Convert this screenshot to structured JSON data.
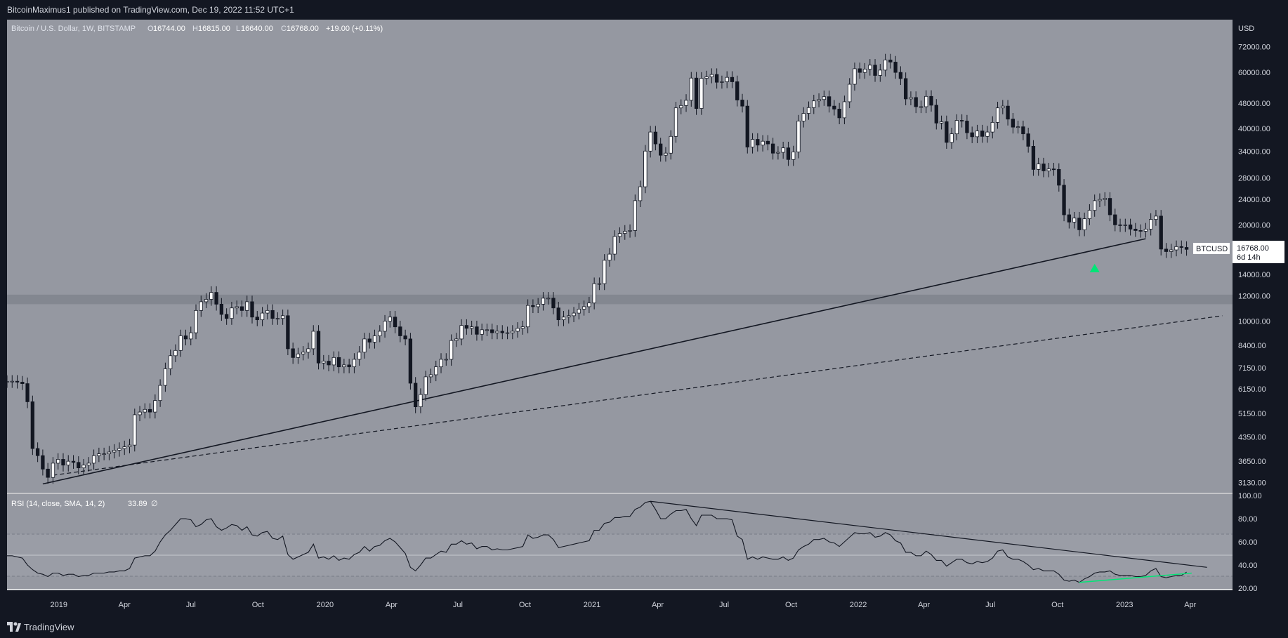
{
  "header": {
    "publisher": "BitcoinMaximus1 published on TradingView.com, Dec 19, 2022 11:52 UTC+1"
  },
  "legend": {
    "title": "Bitcoin / U.S. Dollar, 1W, BITSTAMP",
    "o_label": "O",
    "o_value": "16744.00",
    "h_label": "H",
    "h_value": "16815.00",
    "l_label": "L",
    "l_value": "16640.00",
    "c_label": "C",
    "c_value": "16768.00",
    "change": "+19.00 (+0.11%)"
  },
  "price_axis": {
    "currency": "USD",
    "ticks": [
      "72000.00",
      "60000.00",
      "48000.00",
      "40000.00",
      "34000.00",
      "28000.00",
      "24000.00",
      "20000.00",
      "14000.00",
      "12000.00",
      "10000.00",
      "8400.00",
      "7150.00",
      "6150.00",
      "5150.00",
      "4350.00",
      "3650.00",
      "3130.00"
    ]
  },
  "price_tag": {
    "symbol": "BTCUSD",
    "price": "16768.00",
    "countdown": "6d 14h"
  },
  "rsi": {
    "legend": "RSI (14, close, SMA, 14, 2)",
    "value": "33.89",
    "extra": "∅",
    "ticks": [
      "100.00",
      "80.00",
      "60.00",
      "40.00",
      "20.00"
    ]
  },
  "time_axis": {
    "labels": [
      "2019",
      "Apr",
      "Jul",
      "Oct",
      "2020",
      "Apr",
      "Jul",
      "Oct",
      "2021",
      "Apr",
      "Jul",
      "Oct",
      "2022",
      "Apr",
      "Jul",
      "Oct",
      "2023",
      "Apr"
    ]
  },
  "footer": {
    "brand": "TradingView"
  },
  "colors": {
    "background": "#131722",
    "pane": "#9598a1",
    "bull": "#ffffff",
    "bear": "#131722",
    "signal": "#00e676"
  },
  "chart_data": {
    "type": "candlestick",
    "symbol": "BTCUSD",
    "interval": "1W",
    "log_scale": true,
    "ylim": [
      3000,
      76000
    ],
    "x_range": [
      "2018-10-22",
      "2023-05-29"
    ],
    "weekly_close": [
      6480,
      6490,
      6450,
      6380,
      5600,
      4000,
      3800,
      3450,
      3250,
      3600,
      3700,
      3550,
      3650,
      3620,
      3480,
      3550,
      3600,
      3800,
      3850,
      3850,
      3900,
      3950,
      4000,
      4050,
      4100,
      5100,
      5200,
      5300,
      5200,
      5650,
      6300,
      7100,
      7800,
      8100,
      9000,
      8800,
      9200,
      10800,
      11500,
      11700,
      12300,
      11300,
      10500,
      10200,
      11000,
      11100,
      10800,
      11500,
      10300,
      10100,
      10600,
      10800,
      10200,
      10200,
      10400,
      8200,
      7700,
      7900,
      8000,
      8200,
      9300,
      7400,
      7500,
      7300,
      7700,
      7200,
      7300,
      7200,
      7600,
      8000,
      8800,
      8600,
      9000,
      9300,
      10000,
      10300,
      9600,
      9000,
      8800,
      6400,
      5400,
      5900,
      6700,
      6800,
      7200,
      7600,
      7600,
      8700,
      8800,
      9700,
      9500,
      9600,
      9100,
      9400,
      9400,
      9200,
      9300,
      9200,
      9200,
      9300,
      9500,
      9600,
      11200,
      11100,
      11300,
      11800,
      11800,
      11000,
      10100,
      10300,
      10400,
      10600,
      10900,
      11100,
      11400,
      13100,
      13100,
      15500,
      16200,
      18400,
      18800,
      19100,
      19200,
      23800,
      26300,
      34000,
      39000,
      35800,
      33000,
      33500,
      37800,
      46400,
      47200,
      49000,
      57500,
      46200,
      57400,
      58000,
      59000,
      55800,
      56000,
      57800,
      56000,
      49100,
      47000,
      35000,
      37000,
      35500,
      36500,
      35800,
      33500,
      33700,
      34800,
      32000,
      33800,
      42200,
      44600,
      46500,
      48800,
      49300,
      50300,
      47000,
      46000,
      43200,
      48500,
      55000,
      61500,
      59900,
      61300,
      63100,
      58600,
      60900,
      65500,
      64500,
      59900,
      57300,
      49500,
      50000,
      46800,
      46800,
      50400,
      47300,
      41600,
      42000,
      36200,
      38500,
      42400,
      42200,
      38800,
      37700,
      39300,
      37800,
      39000,
      41800,
      46400,
      47000,
      42800,
      40400,
      40500,
      38500,
      35200,
      29800,
      31000,
      29500,
      29900,
      29800,
      26600,
      21500,
      20400,
      21000,
      19300,
      20900,
      22200,
      23800,
      24000,
      24200,
      21500,
      20000,
      19900,
      20000,
      19400,
      19200,
      19100,
      19400,
      20800,
      21300,
      16800,
      16500,
      16700,
      17100,
      17000,
      16768
    ],
    "support_line": {
      "start": [
        "2018-12-10",
        3100
      ],
      "end": [
        "2023-01-30",
        18100
      ]
    },
    "parallel_line": {
      "start": [
        "2018-12-24",
        3300
      ],
      "end": [
        "2023-05-15",
        10400
      ]
    },
    "resistance_zone": [
      11300,
      12100
    ],
    "signal_marker": {
      "date": "2022-11-21",
      "price": 15500,
      "label": "▲"
    },
    "rsi_series": {
      "name": "RSI",
      "levels": [
        70,
        50,
        30
      ],
      "ylim": [
        20,
        100
      ],
      "values": [
        48,
        48,
        47,
        46,
        40,
        36,
        33,
        32,
        30,
        33,
        33,
        31,
        32,
        32,
        30,
        31,
        31,
        33,
        33,
        33,
        34,
        34,
        35,
        35,
        37,
        46,
        47,
        48,
        48,
        52,
        60,
        66,
        70,
        75,
        80,
        80,
        79,
        73,
        75,
        79,
        80,
        73,
        70,
        72,
        75,
        74,
        70,
        73,
        66,
        65,
        68,
        69,
        63,
        62,
        65,
        49,
        45,
        47,
        49,
        51,
        58,
        46,
        47,
        45,
        48,
        44,
        46,
        45,
        49,
        51,
        56,
        52,
        56,
        57,
        61,
        63,
        60,
        55,
        50,
        38,
        35,
        40,
        46,
        46,
        49,
        52,
        51,
        58,
        58,
        61,
        58,
        59,
        54,
        56,
        56,
        53,
        54,
        53,
        53,
        54,
        55,
        56,
        66,
        63,
        64,
        66,
        66,
        62,
        55,
        56,
        57,
        58,
        59,
        60,
        61,
        70,
        70,
        76,
        77,
        81,
        81,
        82,
        82,
        88,
        90,
        94,
        95,
        88,
        80,
        80,
        84,
        87,
        87,
        88,
        80,
        74,
        83,
        83,
        83,
        80,
        80,
        80,
        79,
        65,
        62,
        45,
        47,
        45,
        47,
        46,
        45,
        45,
        47,
        44,
        46,
        53,
        56,
        58,
        62,
        62,
        63,
        60,
        59,
        56,
        60,
        64,
        68,
        67,
        67,
        68,
        64,
        65,
        68,
        66,
        61,
        59,
        51,
        51,
        48,
        48,
        52,
        49,
        44,
        44,
        39,
        42,
        45,
        45,
        42,
        41,
        43,
        42,
        43,
        46,
        52,
        53,
        47,
        45,
        45,
        43,
        40,
        36,
        37,
        35,
        35,
        35,
        32,
        27,
        26,
        27,
        25,
        28,
        30,
        33,
        34,
        34,
        35,
        32,
        31,
        31,
        31,
        30,
        30,
        31,
        35,
        37,
        30,
        29,
        30,
        31,
        31,
        33.89
      ]
    }
  }
}
